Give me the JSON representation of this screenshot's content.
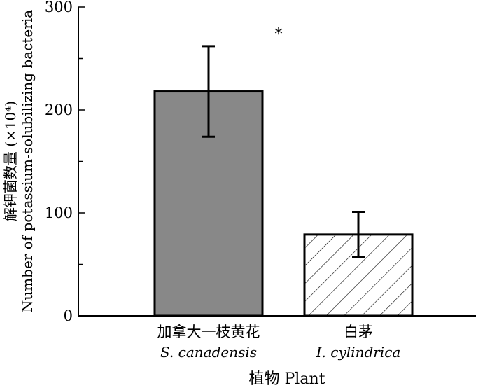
{
  "chart_data": {
    "type": "bar",
    "categories": [
      "S. canadensis",
      "I. cylindrica"
    ],
    "category_labels_cn": [
      "加拿大一枝黄花",
      "白茅"
    ],
    "category_labels_latin": [
      "S. canadensis",
      "I. cylindrica"
    ],
    "values": [
      218,
      79
    ],
    "errors": [
      44,
      22
    ],
    "fills": [
      "solid-gray",
      "hatched"
    ],
    "bar_colors": [
      "#888888",
      "#ffffff"
    ],
    "xlabel": "植物 Plant",
    "ylabel_line1": "解钾菌数量 (×10⁴)",
    "ylabel_line2": "Number of potassium-solubilizing bacteria",
    "ylim": [
      0,
      300
    ],
    "yticks": [
      0,
      100,
      200,
      300
    ],
    "annotation": "*",
    "grid": false
  }
}
